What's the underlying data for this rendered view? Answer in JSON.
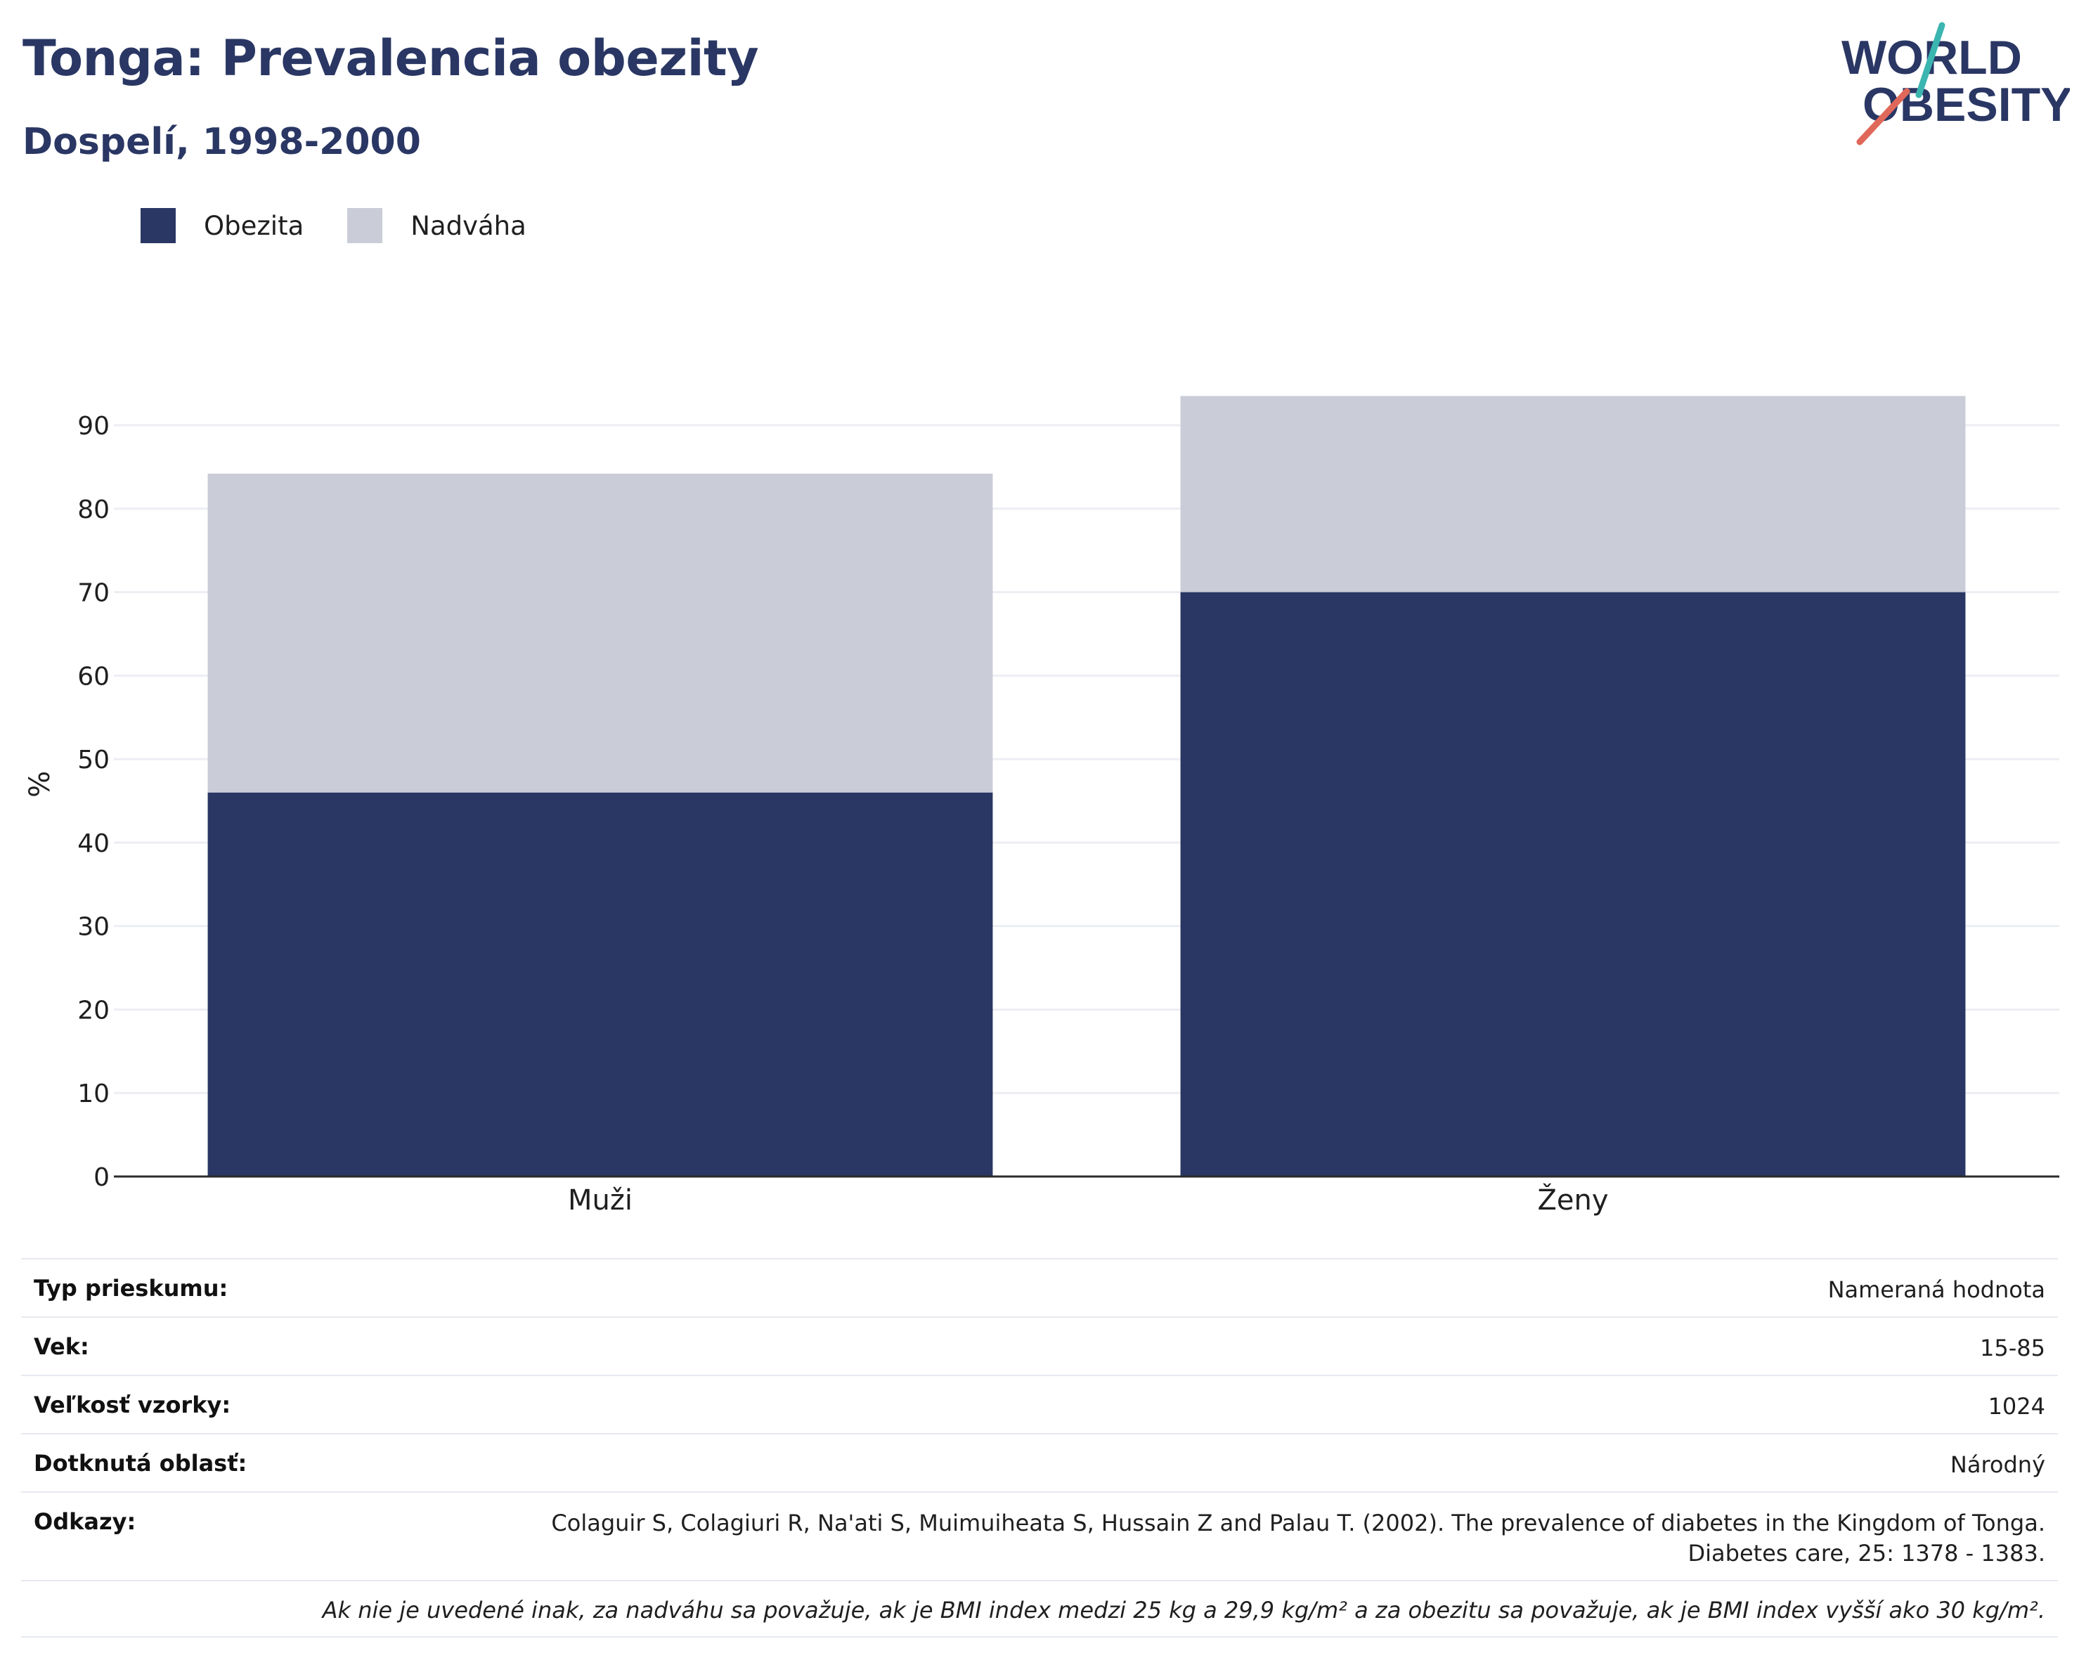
{
  "header": {
    "title": "Tonga: Prevalencia obezity",
    "subtitle": "Dospelí, 1998-2000"
  },
  "logo": {
    "line1": "WORLD",
    "line2": "OBESITY",
    "accent_colors": [
      "#3bb5b0",
      "#e0685a"
    ]
  },
  "legend": [
    {
      "label": "Obezita",
      "color": "#2a3764"
    },
    {
      "label": "Nadváha",
      "color": "#cacdd8"
    }
  ],
  "chart_data": {
    "type": "bar",
    "stacked": true,
    "categories": [
      "Muži",
      "Ženy"
    ],
    "series": [
      {
        "name": "Obezita",
        "values": [
          46,
          70
        ],
        "color": "#2a3764"
      },
      {
        "name": "Nadváha",
        "values": [
          38.2,
          23.5
        ],
        "color": "#cacdd8"
      }
    ],
    "ylabel": "%",
    "ylim": [
      0,
      95
    ],
    "yticks": [
      0,
      10,
      20,
      30,
      40,
      50,
      60,
      70,
      80,
      90
    ],
    "grid": true,
    "legend_position": "top-left"
  },
  "info": {
    "rows": [
      {
        "key": "Typ prieskumu:",
        "value": "Nameraná hodnota"
      },
      {
        "key": "Vek:",
        "value": "15-85"
      },
      {
        "key": "Veľkosť vzorky:",
        "value": "1024"
      },
      {
        "key": "Dotknutá oblasť:",
        "value": "Národný"
      }
    ],
    "references_key": "Odkazy:",
    "references_line1": "Colaguir S, Colagiuri R, Na'ati S, Muimuiheata S, Hussain Z and Palau T. (2002). The prevalence of diabetes in the Kingdom of Tonga.",
    "references_line2": "Diabetes care, 25: 1378 - 1383.",
    "note": "Ak nie je uvedené inak, za nadváhu sa považuje, ak je BMI index medzi 25 kg a 29,9 kg/m² a za obezitu sa považuje, ak je BMI index vyšší ako 30 kg/m²."
  }
}
